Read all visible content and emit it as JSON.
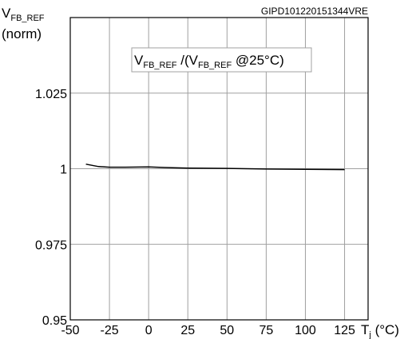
{
  "chart_data": {
    "type": "line",
    "doc_id": "GIPD101220151344VRE",
    "y_title": {
      "main": "V",
      "sub": "FB_REF",
      "unit": "(norm)"
    },
    "annotation": {
      "v1": "V",
      "s1": "FB_REF",
      "mid": " /(V",
      "s2": "FB_REF",
      "end": " @25°C)"
    },
    "x_title": {
      "main": "T",
      "sub": "j",
      "unit": " (°C)"
    },
    "xlim": [
      -50,
      140
    ],
    "ylim": [
      0.95,
      1.05
    ],
    "x_ticks": [
      -50,
      -25,
      0,
      25,
      50,
      75,
      100,
      125
    ],
    "y_ticks": [
      0.95,
      0.975,
      1,
      1.025
    ],
    "x_tick_labels": [
      "-50",
      "-25",
      "0",
      "25",
      "50",
      "75",
      "100",
      "125"
    ],
    "y_tick_labels": [
      "0.95",
      "0.975",
      "1",
      "1.025"
    ],
    "grid": true,
    "series": [
      {
        "x": [
          -40,
          -32,
          -25,
          -15,
          0,
          10,
          25,
          50,
          75,
          100,
          125
        ],
        "y": [
          1.0015,
          1.0007,
          1.0005,
          1.0005,
          1.0006,
          1.0004,
          1.0002,
          1.0001,
          0.9999,
          0.9998,
          0.9997
        ]
      }
    ],
    "colors": {
      "line": "#000000",
      "grid": "#a0a0a0",
      "frame": "#000000"
    }
  }
}
